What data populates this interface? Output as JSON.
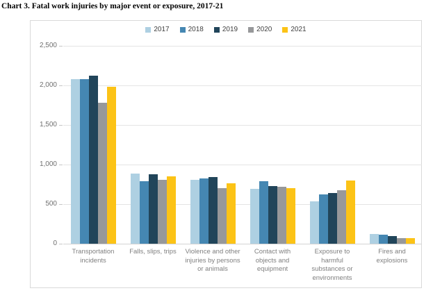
{
  "title": "Chart 3. Fatal work injuries by major event or exposure, 2017-21",
  "chart_data": {
    "type": "bar",
    "title": "Chart 3. Fatal work injuries by major event or exposure, 2017-21",
    "xlabel": "",
    "ylabel": "",
    "ylim": [
      0,
      2500
    ],
    "ytick_step": 500,
    "yticks": [
      "0",
      "500",
      "1,000",
      "1,500",
      "2,000",
      "2,500"
    ],
    "grid": true,
    "legend_position": "top-center",
    "categories": [
      "Transportation\nincidents",
      "Falls, slips, trips",
      "Violence and other\ninjuries by persons\nor animals",
      "Contact with\nobjects and\nequipment",
      "Exposure to\nharmful\nsubstances or\nenvironments",
      "Fires and\nexplosions"
    ],
    "series": [
      {
        "name": "2017",
        "color": "#aed0e2",
        "values": [
          2077,
          887,
          807,
          695,
          531,
          123
        ]
      },
      {
        "name": "2018",
        "color": "#4587b2",
        "values": [
          2080,
          791,
          828,
          786,
          621,
          115
        ]
      },
      {
        "name": "2019",
        "color": "#21455a",
        "values": [
          2122,
          880,
          841,
          732,
          642,
          99
        ]
      },
      {
        "name": "2020",
        "color": "#97989a",
        "values": [
          1778,
          805,
          705,
          716,
          672,
          71
        ]
      },
      {
        "name": "2021",
        "color": "#fcc316",
        "values": [
          1982,
          850,
          761,
          705,
          798,
          72
        ]
      }
    ]
  }
}
